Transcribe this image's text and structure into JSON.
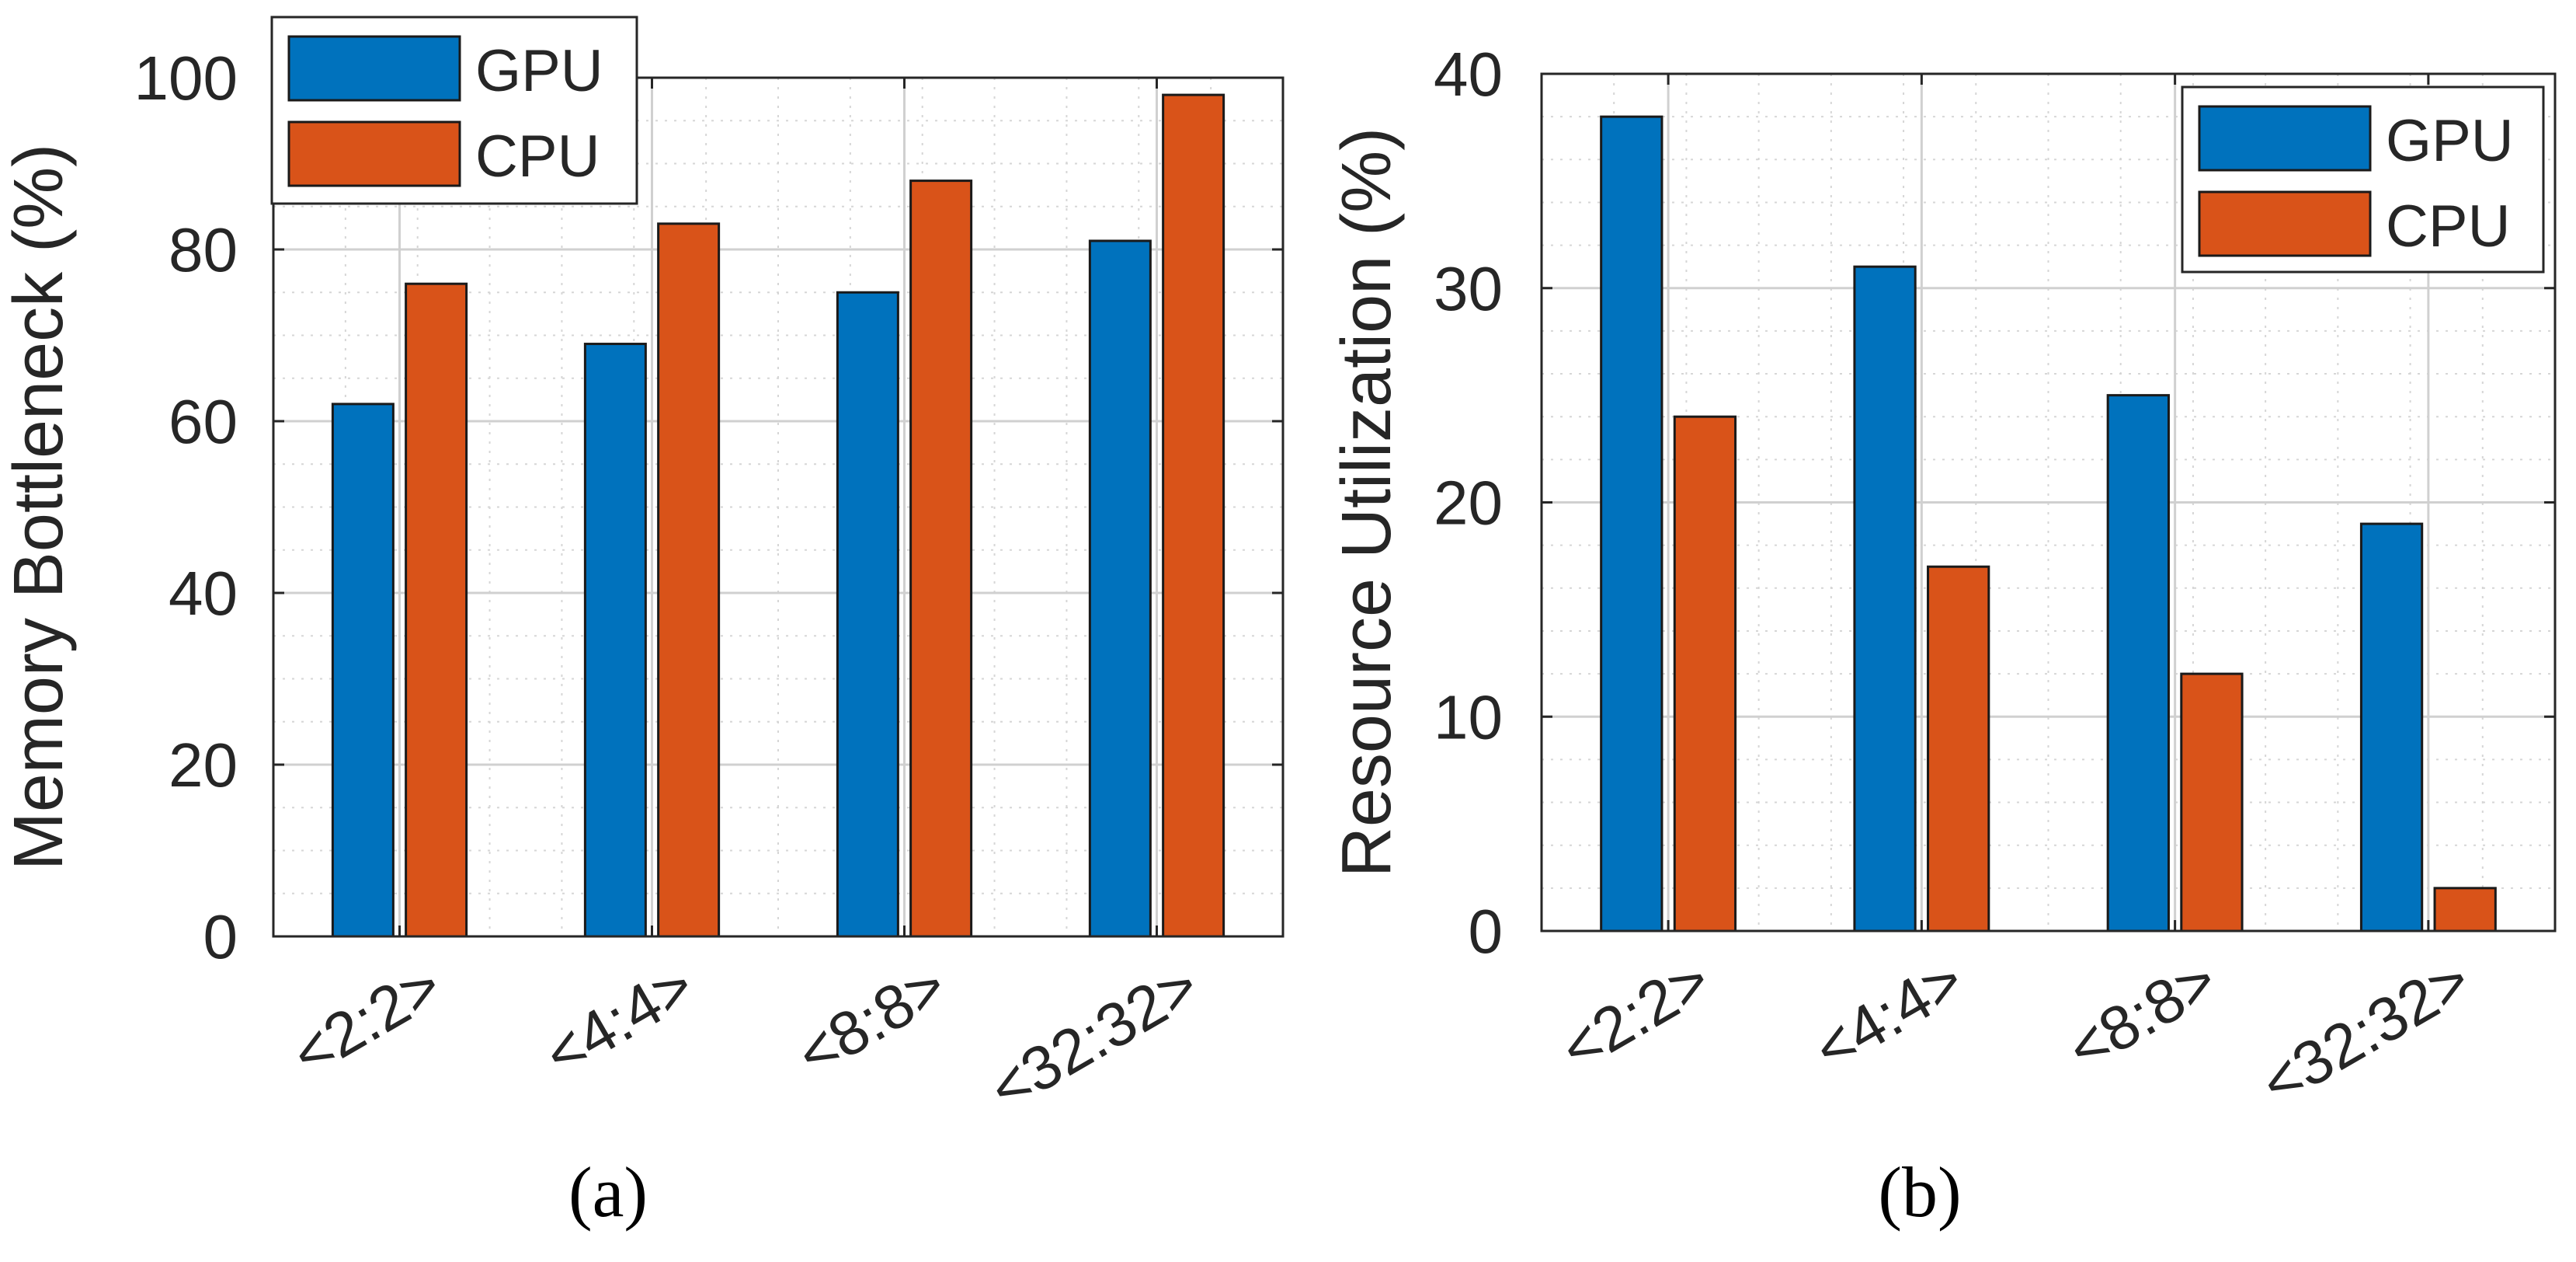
{
  "colors": {
    "gpu": "#0072BD",
    "cpu": "#D95319",
    "axis": "#262626",
    "grid": "#cfcfcf"
  },
  "chart_data": [
    {
      "type": "bar",
      "caption": "(a)",
      "categories": [
        "<2:2>",
        "<4:4>",
        "<8:8>",
        "<32:32>"
      ],
      "series": [
        {
          "name": "GPU",
          "values": [
            62,
            69,
            75,
            81
          ]
        },
        {
          "name": "CPU",
          "values": [
            76,
            83,
            88,
            98
          ]
        }
      ],
      "xlabel": "",
      "ylabel": "Memory Bottleneck (%)",
      "ylim": [
        0,
        100
      ],
      "yticks": [
        0,
        20,
        40,
        60,
        80,
        100
      ],
      "grid": true,
      "legend": "top-left"
    },
    {
      "type": "bar",
      "caption": "(b)",
      "categories": [
        "<2:2>",
        "<4:4>",
        "<8:8>",
        "<32:32>"
      ],
      "series": [
        {
          "name": "GPU",
          "values": [
            38,
            31,
            25,
            19
          ]
        },
        {
          "name": "CPU",
          "values": [
            24,
            17,
            12,
            2
          ]
        }
      ],
      "xlabel": "",
      "ylabel": "Resource Utilization (%)",
      "ylim": [
        0,
        40
      ],
      "yticks": [
        0,
        10,
        20,
        30,
        40
      ],
      "grid": true,
      "legend": "top-right"
    }
  ]
}
